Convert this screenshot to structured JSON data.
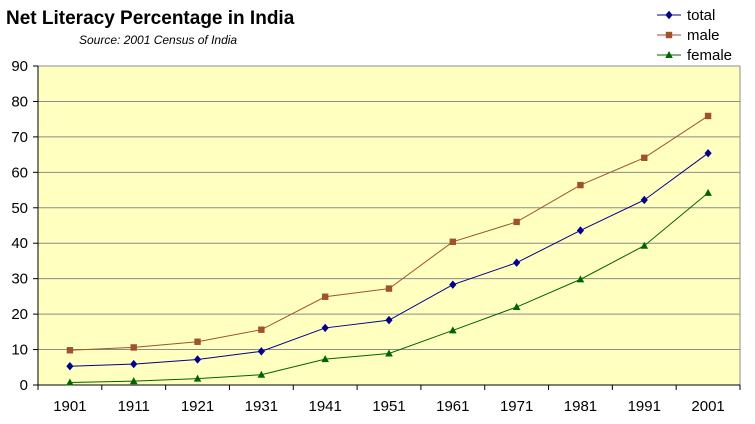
{
  "chart_data": {
    "type": "line",
    "title": "Net Literacy Percentage in India",
    "subtitle": "Source: 2001 Census of India",
    "xlabel": "",
    "ylabel": "",
    "ylim": [
      0,
      90
    ],
    "yticks": [
      "0",
      "10",
      "20",
      "30",
      "40",
      "50",
      "60",
      "70",
      "80",
      "90"
    ],
    "categories": [
      "1901",
      "1911",
      "1921",
      "1931",
      "1941",
      "1951",
      "1961",
      "1971",
      "1981",
      "1991",
      "2001"
    ],
    "grid": true,
    "legend_position": "top-right",
    "plot_background": "#ffffc0",
    "series": [
      {
        "name": "total",
        "color": "#00008b",
        "marker": "diamond",
        "values": [
          5.3,
          5.9,
          7.2,
          9.5,
          16.1,
          18.3,
          28.3,
          34.5,
          43.6,
          52.2,
          65.4
        ]
      },
      {
        "name": "male",
        "color": "#a0522d",
        "marker": "square",
        "values": [
          9.8,
          10.6,
          12.2,
          15.6,
          24.9,
          27.2,
          40.4,
          46.0,
          56.4,
          64.1,
          75.9
        ]
      },
      {
        "name": "female",
        "color": "#006400",
        "marker": "triangle",
        "values": [
          0.7,
          1.1,
          1.8,
          2.9,
          7.3,
          8.9,
          15.4,
          22.0,
          29.8,
          39.3,
          54.2
        ]
      }
    ]
  }
}
